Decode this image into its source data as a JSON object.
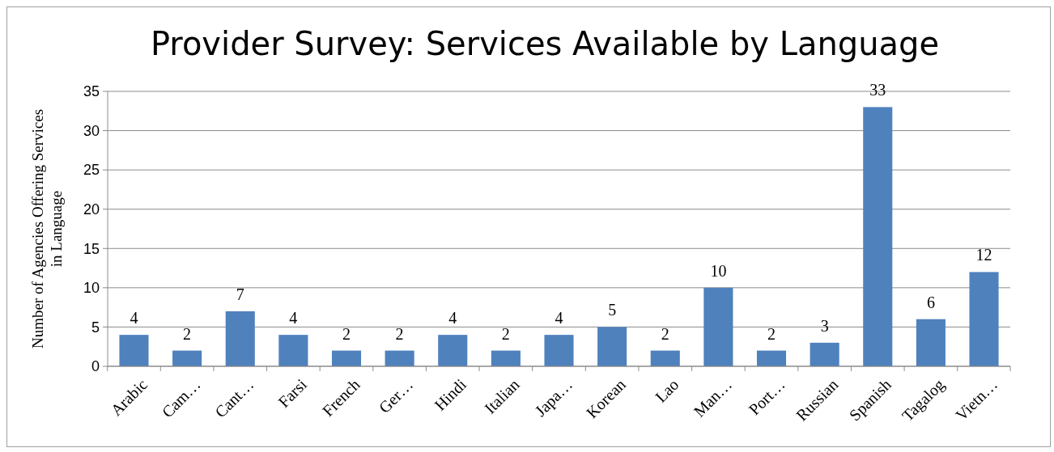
{
  "chart_data": {
    "type": "bar",
    "title": "Provider Survey: Services Available by Language",
    "ylabel": "Number of Agencies Offering Services in Language",
    "categories": [
      "Arabic",
      "Cam…",
      "Cant…",
      "Farsi",
      "French",
      "Ger…",
      "Hindi",
      "Italian",
      "Japa…",
      "Korean",
      "Lao",
      "Man…",
      "Port…",
      "Russian",
      "Spanish",
      "Tagalog",
      "Vietn…"
    ],
    "values": [
      4,
      2,
      7,
      4,
      2,
      2,
      4,
      2,
      4,
      5,
      2,
      10,
      2,
      3,
      33,
      6,
      12
    ],
    "color": "#4f81bd",
    "ylim": [
      0,
      35
    ],
    "yticks": [
      0,
      5,
      10,
      15,
      20,
      25,
      30,
      35
    ],
    "grid": "y",
    "data_labels": true
  }
}
